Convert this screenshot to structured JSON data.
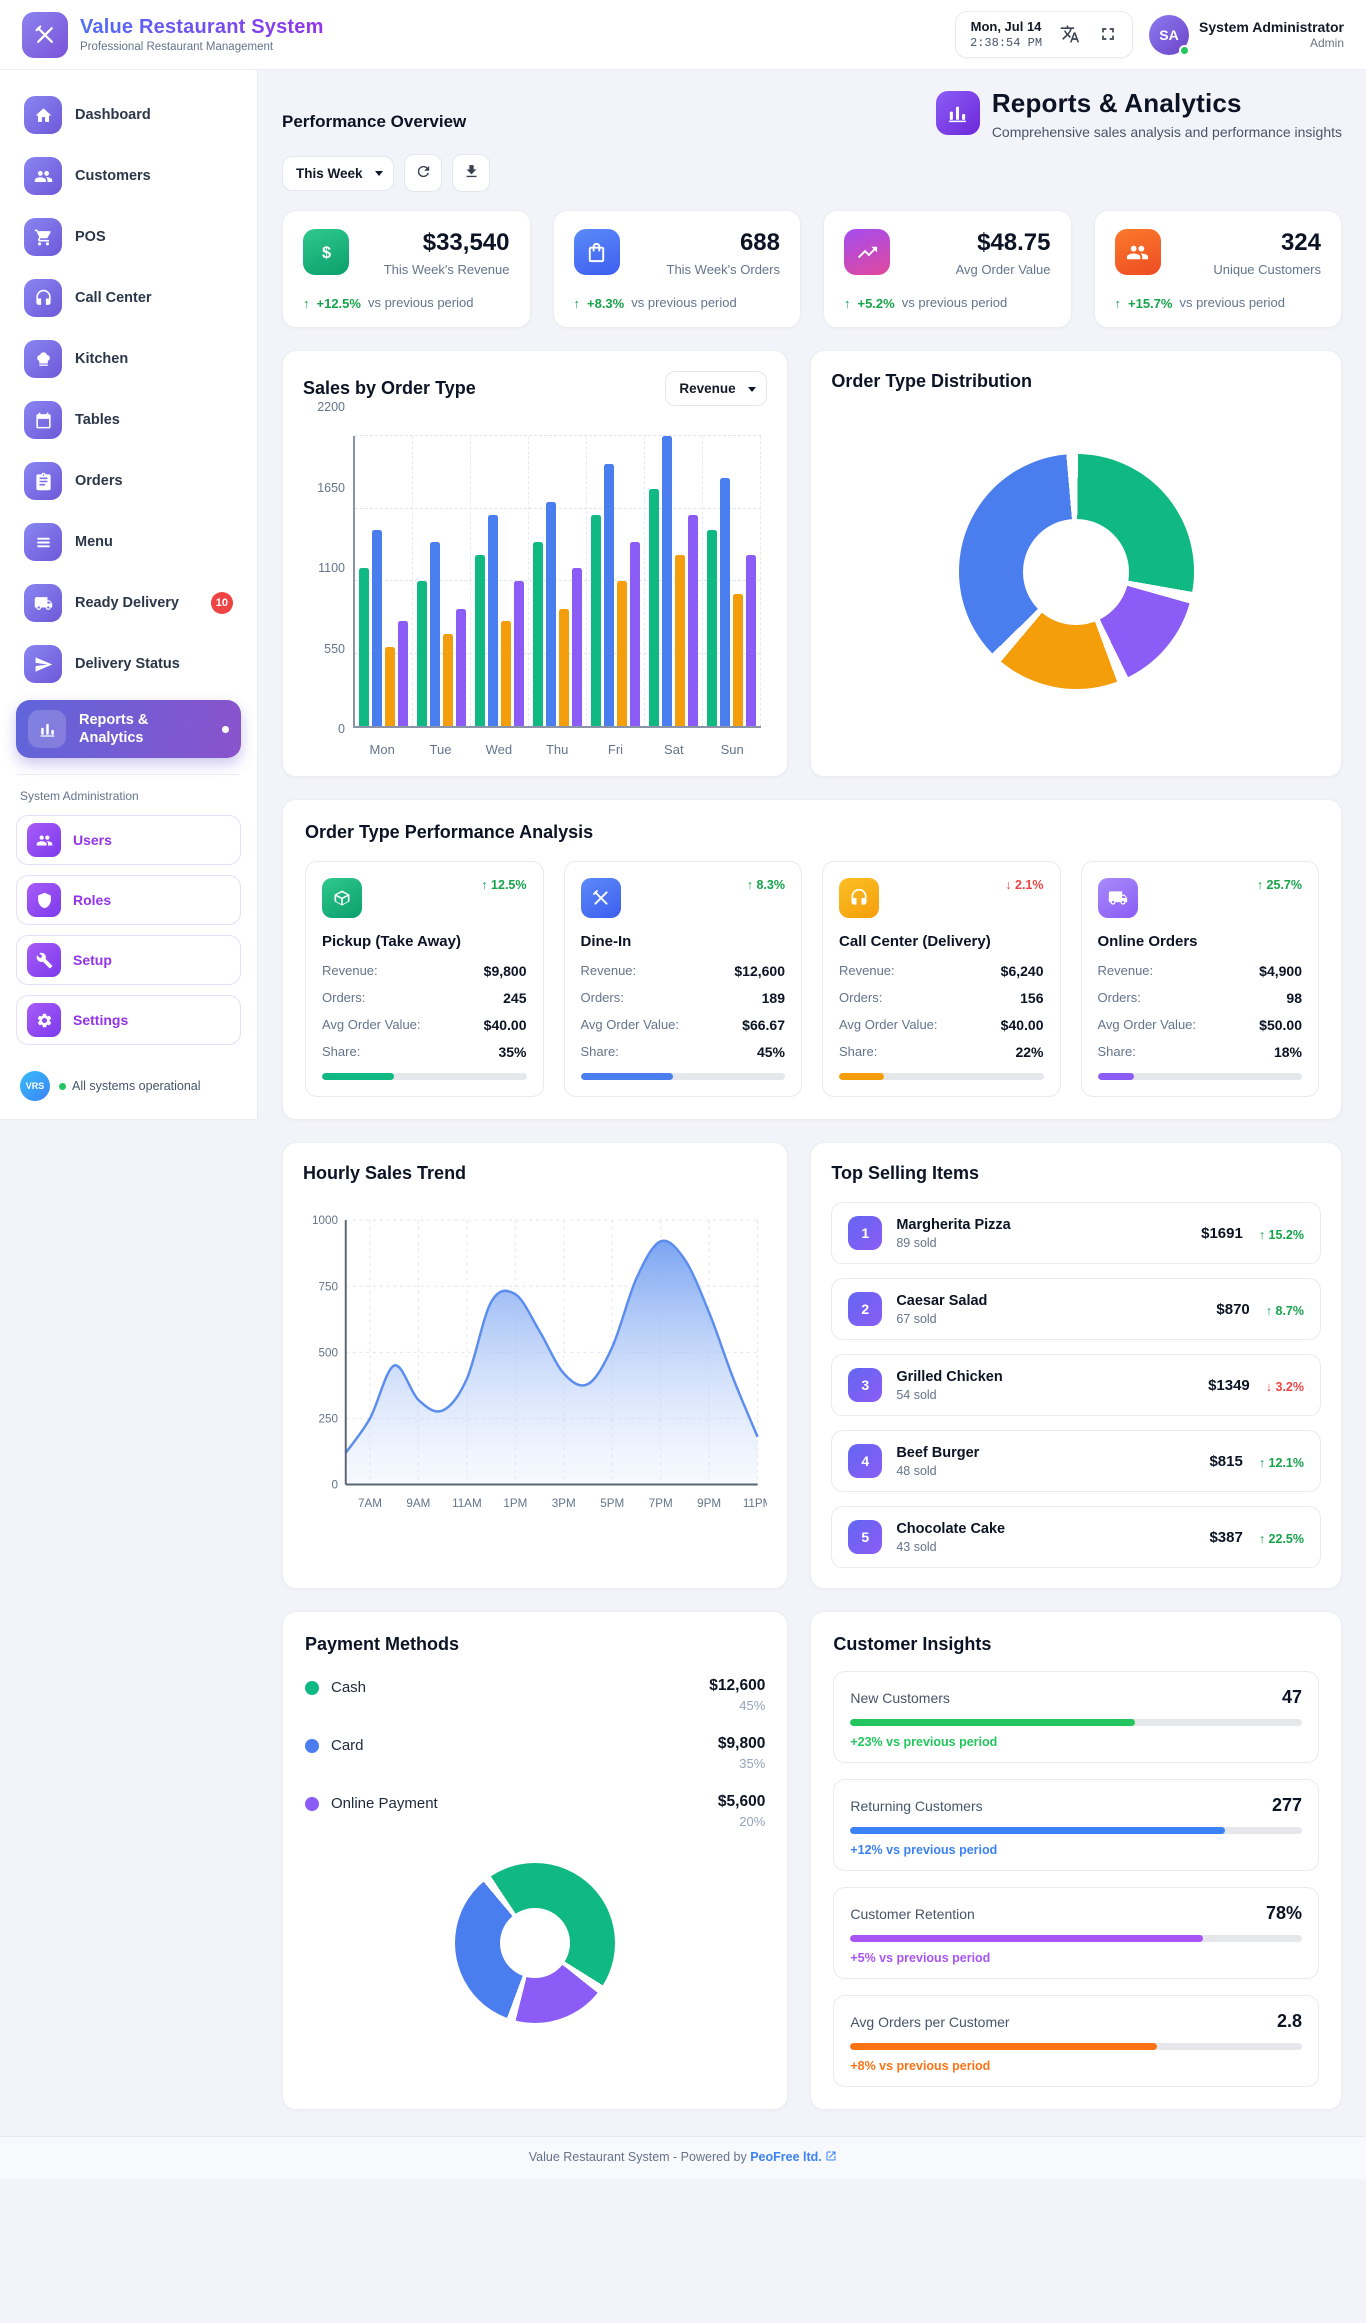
{
  "app": {
    "name": "Value Restaurant System",
    "tagline": "Professional Restaurant Management"
  },
  "header": {
    "date": "Mon, Jul 14",
    "time": "2:38:54 PM",
    "user": {
      "initials": "SA",
      "name": "System Administrator",
      "role": "Admin",
      "status": "online"
    }
  },
  "sidebar": {
    "items": [
      {
        "label": "Dashboard",
        "icon": "home-icon"
      },
      {
        "label": "Customers",
        "icon": "customers-icon"
      },
      {
        "label": "POS",
        "icon": "cart-icon"
      },
      {
        "label": "Call Center",
        "icon": "headset-icon"
      },
      {
        "label": "Kitchen",
        "icon": "chef-hat-icon"
      },
      {
        "label": "Tables",
        "icon": "calendar-icon"
      },
      {
        "label": "Orders",
        "icon": "clipboard-icon"
      },
      {
        "label": "Menu",
        "icon": "menu-list-icon"
      },
      {
        "label": "Ready Delivery",
        "icon": "truck-icon",
        "badge": "10"
      },
      {
        "label": "Delivery Status",
        "icon": "paper-plane-icon"
      },
      {
        "label": "Reports & Analytics",
        "icon": "bar-chart-icon",
        "active": true
      }
    ],
    "admin_section": {
      "title": "System Administration",
      "items": [
        {
          "label": "Users",
          "icon": "users-icon"
        },
        {
          "label": "Roles",
          "icon": "shield-icon"
        },
        {
          "label": "Setup",
          "icon": "wrench-icon"
        },
        {
          "label": "Settings",
          "icon": "gear-icon"
        }
      ]
    },
    "status": {
      "badge": "VRS",
      "text": "All systems operational"
    }
  },
  "page": {
    "section_title": "Performance Overview",
    "title": "Reports & Analytics",
    "subtitle": "Comprehensive sales analysis and performance insights",
    "period_select": "This Week",
    "metric_select": "Revenue"
  },
  "stats": [
    {
      "value": "$33,540",
      "label": "This Week's Revenue",
      "change": "+12.5%",
      "direction": "up",
      "note": "vs previous period",
      "icon": "dollar-icon",
      "color": "green"
    },
    {
      "value": "688",
      "label": "This Week's Orders",
      "change": "+8.3%",
      "direction": "up",
      "note": "vs previous period",
      "icon": "shopping-bag-icon",
      "color": "blue"
    },
    {
      "value": "$48.75",
      "label": "Avg Order Value",
      "change": "+5.2%",
      "direction": "up",
      "note": "vs previous period",
      "icon": "trend-up-icon",
      "color": "pink"
    },
    {
      "value": "324",
      "label": "Unique Customers",
      "change": "+15.7%",
      "direction": "up",
      "note": "vs previous period",
      "icon": "customers-icon",
      "color": "orange"
    }
  ],
  "chart_data": [
    {
      "type": "bar",
      "title": "Sales by Order Type",
      "metric": "Revenue",
      "categories": [
        "Mon",
        "Tue",
        "Wed",
        "Thu",
        "Fri",
        "Sat",
        "Sun"
      ],
      "series": [
        {
          "name": "Pickup",
          "color": "#10b981",
          "values": [
            1200,
            1100,
            1300,
            1400,
            1600,
            1800,
            1490
          ]
        },
        {
          "name": "Dine-In",
          "color": "#4a7dee",
          "values": [
            1490,
            1400,
            1600,
            1700,
            1990,
            2200,
            1880
          ]
        },
        {
          "name": "Call Center",
          "color": "#f59e0b",
          "values": [
            600,
            700,
            800,
            890,
            1100,
            1300,
            1000
          ]
        },
        {
          "name": "Online",
          "color": "#8b5cf6",
          "values": [
            800,
            890,
            1100,
            1200,
            1400,
            1600,
            1300
          ]
        }
      ],
      "ylim": [
        0,
        2200
      ],
      "yticks": [
        0,
        550,
        1100,
        1650,
        2200
      ],
      "grid": true,
      "legend": "none"
    },
    {
      "type": "pie",
      "title": "Order Type Distribution",
      "start_angle": -5,
      "segments": [
        {
          "label": "Pickup",
          "value": 35,
          "color": "#10b981"
        },
        {
          "label": "Online",
          "value": 18,
          "color": "#8b5cf6"
        },
        {
          "label": "Call Center",
          "value": 22,
          "color": "#f59e0b"
        },
        {
          "label": "Dine-In",
          "value": 45,
          "color": "#4a7dee"
        }
      ]
    },
    {
      "type": "area",
      "title": "Hourly Sales Trend",
      "x": [
        "6AM",
        "7AM",
        "8AM",
        "9AM",
        "10AM",
        "11AM",
        "12PM",
        "1PM",
        "2PM",
        "3PM",
        "4PM",
        "5PM",
        "6PM",
        "7PM",
        "8PM",
        "9PM",
        "10PM",
        "11PM"
      ],
      "values": [
        120,
        250,
        450,
        320,
        280,
        400,
        690,
        720,
        580,
        420,
        380,
        520,
        780,
        920,
        850,
        650,
        400,
        180
      ],
      "xticks": [
        "7AM",
        "9AM",
        "11AM",
        "1PM",
        "3PM",
        "5PM",
        "7PM",
        "9PM",
        "11PM"
      ],
      "ylim": [
        0,
        1000
      ],
      "yticks": [
        0,
        250,
        500,
        750,
        1000
      ],
      "line_color": "#5b8def",
      "grid": true
    },
    {
      "type": "pie",
      "title": "Payment Methods",
      "start_angle": -40,
      "segments": [
        {
          "label": "Cash",
          "value": 45,
          "color": "#10b981"
        },
        {
          "label": "Online Payment",
          "value": 20,
          "color": "#8b5cf6"
        },
        {
          "label": "Card",
          "value": 35,
          "color": "#4a7dee"
        }
      ]
    }
  ],
  "performance": {
    "title": "Order Type Performance Analysis",
    "cards": [
      {
        "name": "Pickup (Take Away)",
        "icon": "package-icon",
        "color": "green",
        "direction": "up",
        "change": "12.5%",
        "share_percent": 35,
        "rows": [
          {
            "label": "Revenue:",
            "value": "$9,800"
          },
          {
            "label": "Orders:",
            "value": "245"
          },
          {
            "label": "Avg Order Value:",
            "value": "$40.00"
          },
          {
            "label": "Share:",
            "value": "35%"
          }
        ]
      },
      {
        "name": "Dine-In",
        "icon": "utensils-icon",
        "color": "blue",
        "direction": "up",
        "change": "8.3%",
        "share_percent": 45,
        "rows": [
          {
            "label": "Revenue:",
            "value": "$12,600"
          },
          {
            "label": "Orders:",
            "value": "189"
          },
          {
            "label": "Avg Order Value:",
            "value": "$66.67"
          },
          {
            "label": "Share:",
            "value": "45%"
          }
        ]
      },
      {
        "name": "Call Center (Delivery)",
        "icon": "headset-icon",
        "color": "orange",
        "direction": "down",
        "change": "2.1%",
        "share_percent": 22,
        "rows": [
          {
            "label": "Revenue:",
            "value": "$6,240"
          },
          {
            "label": "Orders:",
            "value": "156"
          },
          {
            "label": "Avg Order Value:",
            "value": "$40.00"
          },
          {
            "label": "Share:",
            "value": "22%"
          }
        ]
      },
      {
        "name": "Online Orders",
        "icon": "truck-icon",
        "color": "purple",
        "direction": "up",
        "change": "25.7%",
        "share_percent": 18,
        "rows": [
          {
            "label": "Revenue:",
            "value": "$4,900"
          },
          {
            "label": "Orders:",
            "value": "98"
          },
          {
            "label": "Avg Order Value:",
            "value": "$50.00"
          },
          {
            "label": "Share:",
            "value": "18%"
          }
        ]
      }
    ]
  },
  "top_items": {
    "title": "Top Selling Items",
    "items": [
      {
        "rank": "1",
        "name": "Margherita Pizza",
        "sold": "89 sold",
        "amount": "$1691",
        "change": "15.2%",
        "direction": "up"
      },
      {
        "rank": "2",
        "name": "Caesar Salad",
        "sold": "67 sold",
        "amount": "$870",
        "change": "8.7%",
        "direction": "up"
      },
      {
        "rank": "3",
        "name": "Grilled Chicken",
        "sold": "54 sold",
        "amount": "$1349",
        "change": "3.2%",
        "direction": "down"
      },
      {
        "rank": "4",
        "name": "Beef Burger",
        "sold": "48 sold",
        "amount": "$815",
        "change": "12.1%",
        "direction": "up"
      },
      {
        "rank": "5",
        "name": "Chocolate Cake",
        "sold": "43 sold",
        "amount": "$387",
        "change": "22.5%",
        "direction": "up"
      }
    ]
  },
  "payments": {
    "title": "Payment Methods",
    "rows": [
      {
        "label": "Cash",
        "amount": "$12,600",
        "percent": "45%",
        "color": "#10b981"
      },
      {
        "label": "Card",
        "amount": "$9,800",
        "percent": "35%",
        "color": "#4a7dee"
      },
      {
        "label": "Online Payment",
        "amount": "$5,600",
        "percent": "20%",
        "color": "#8b5cf6"
      }
    ]
  },
  "insights": {
    "title": "Customer Insights",
    "metrics": [
      {
        "label": "New Customers",
        "value": "47",
        "bar_percent": 63,
        "color": "#22c55e",
        "note": "+23% vs previous period"
      },
      {
        "label": "Returning Customers",
        "value": "277",
        "bar_percent": 83,
        "color": "#3b82f6",
        "note": "+12% vs previous period"
      },
      {
        "label": "Customer Retention",
        "value": "78%",
        "bar_percent": 78,
        "color": "#a855f7",
        "note": "+5% vs previous period"
      },
      {
        "label": "Avg Orders per Customer",
        "value": "2.8",
        "bar_percent": 68,
        "color": "#f97316",
        "note": "+8% vs previous period"
      }
    ]
  },
  "footer": {
    "text": "Value Restaurant System - Powered by",
    "link": "PeoFree ltd."
  }
}
